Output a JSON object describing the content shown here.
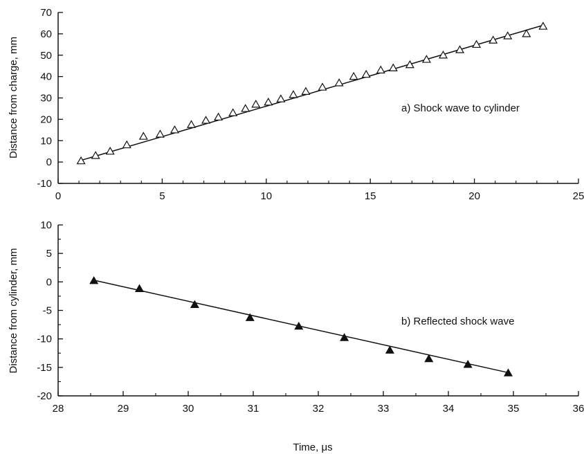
{
  "chart_data": [
    {
      "type": "scatter",
      "panel": "a",
      "title": "",
      "annotation": "a) Shock wave to cylinder",
      "xlabel": "",
      "ylabel": "Distance from charge, mm",
      "xlim": [
        0,
        25
      ],
      "ylim": [
        -10,
        70
      ],
      "xticks": [
        0,
        5,
        10,
        15,
        20,
        25
      ],
      "yticks": [
        -10,
        0,
        10,
        20,
        30,
        40,
        50,
        60,
        70
      ],
      "grid": false,
      "marker": "open-triangle",
      "fit_line": {
        "x": [
          1.0,
          23.3
        ],
        "y": [
          0.5,
          64.0
        ]
      },
      "series": [
        {
          "x": [
            1.1,
            1.8,
            2.5,
            3.3,
            4.1,
            4.9,
            5.6,
            6.4,
            7.1,
            7.7,
            8.4,
            9.0,
            9.5,
            10.1,
            10.7,
            11.3,
            11.9,
            12.7,
            13.5,
            14.2,
            14.8,
            15.5,
            16.1,
            16.9,
            17.7,
            18.5,
            19.3,
            20.1,
            20.9,
            21.6,
            22.5,
            23.3
          ],
          "y": [
            0.5,
            3,
            5,
            8,
            12,
            13,
            15,
            17.5,
            19.5,
            21,
            23,
            25,
            27,
            28,
            29.5,
            31.5,
            33,
            35,
            37,
            40,
            41,
            43,
            44,
            45.5,
            48,
            50,
            52.5,
            55,
            57,
            59,
            60,
            63.5
          ]
        }
      ]
    },
    {
      "type": "scatter",
      "panel": "b",
      "title": "",
      "annotation": "b) Reflected shock wave",
      "xlabel": "Time, μs",
      "ylabel": "Distance from cylinder, mm",
      "xlim": [
        28,
        36
      ],
      "ylim": [
        -20,
        10
      ],
      "xticks": [
        28,
        29,
        30,
        31,
        32,
        33,
        34,
        35,
        36
      ],
      "yticks": [
        -20,
        -15,
        -10,
        -5,
        0,
        5,
        10
      ],
      "grid": false,
      "marker": "filled-triangle",
      "fit_line": {
        "x": [
          28.55,
          34.95
        ],
        "y": [
          0.3,
          -16.0
        ]
      },
      "series": [
        {
          "x": [
            28.55,
            29.25,
            30.1,
            30.95,
            31.7,
            32.4,
            33.1,
            33.7,
            34.3,
            34.92
          ],
          "y": [
            0.2,
            -1.2,
            -4.0,
            -6.3,
            -7.8,
            -9.8,
            -12.0,
            -13.5,
            -14.5,
            -16.0
          ]
        }
      ]
    }
  ]
}
